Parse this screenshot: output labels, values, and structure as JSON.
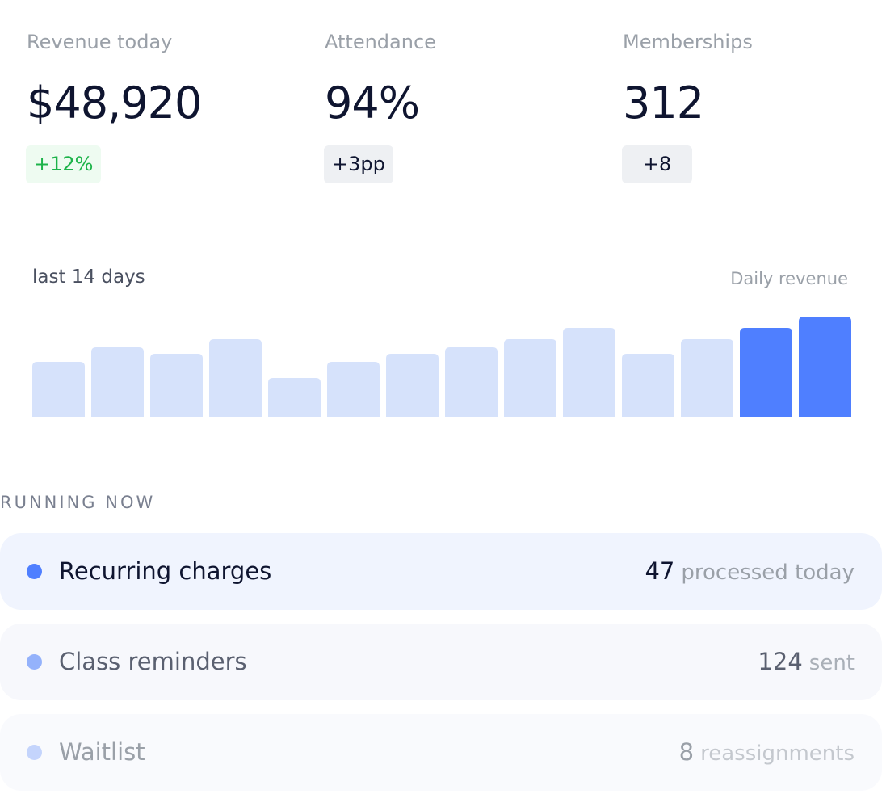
{
  "kpis": [
    {
      "label": "Revenue today",
      "value": "$48,920",
      "delta": "+12%",
      "tone": "positive"
    },
    {
      "label": "Attendance",
      "value": "94%",
      "delta": "+3pp",
      "tone": "neutral"
    },
    {
      "label": "Memberships",
      "value": "312",
      "delta": "+8",
      "tone": "neutral"
    }
  ],
  "chart_data": {
    "type": "bar",
    "title": "last 14 days",
    "subtitle": "Daily revenue",
    "categories": [
      null,
      null,
      null,
      null,
      null,
      null,
      null,
      null,
      null,
      null,
      null,
      null,
      null,
      null
    ],
    "values": [
      68,
      86,
      78,
      96,
      48,
      68,
      78,
      86,
      96,
      110,
      78,
      96,
      110,
      124
    ],
    "colors": [
      "#d6e2fb",
      "#d6e2fb",
      "#d6e2fb",
      "#d6e2fb",
      "#d6e2fb",
      "#d6e2fb",
      "#d6e2fb",
      "#d6e2fb",
      "#d6e2fb",
      "#d6e2fb",
      "#d6e2fb",
      "#d6e2fb",
      "#4f7fff",
      "#4f7fff"
    ],
    "ylim": [
      0,
      124
    ]
  },
  "running": {
    "heading": "RUNNING NOW",
    "items": [
      {
        "name": "Recurring charges",
        "count": 47,
        "unit": "processed today"
      },
      {
        "name": "Class reminders",
        "count": 124,
        "unit": "sent"
      },
      {
        "name": "Waitlist",
        "count": 8,
        "unit": "reassignments"
      }
    ]
  }
}
